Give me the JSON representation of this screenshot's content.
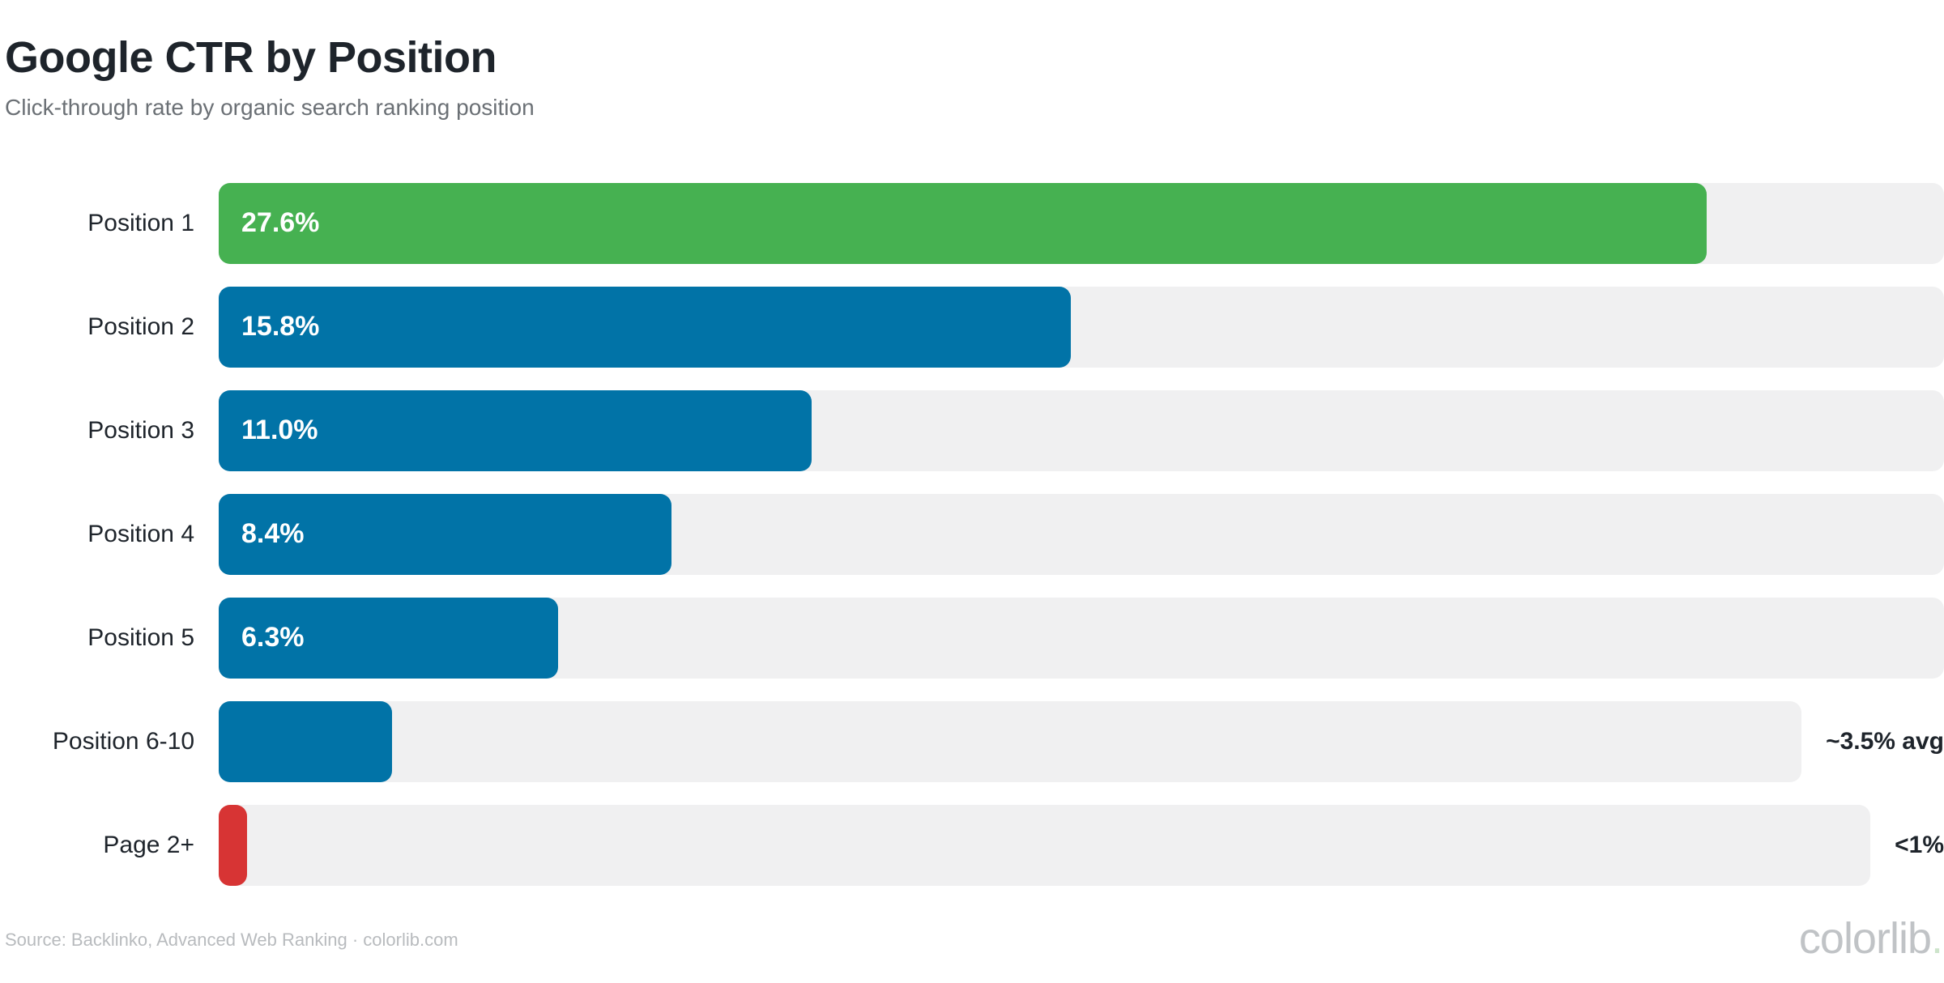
{
  "header": {
    "title": "Google CTR by Position",
    "subtitle": "Click-through rate by organic search ranking position"
  },
  "chart_data": {
    "type": "bar",
    "orientation": "horizontal",
    "title": "Google CTR by Position",
    "subtitle": "Click-through rate by organic search ranking position",
    "xlabel": "",
    "ylabel": "",
    "xlim": [
      0,
      32
    ],
    "grid": false,
    "legend": false,
    "categories": [
      "Position 1",
      "Position 2",
      "Position 3",
      "Position 4",
      "Position 5",
      "Position 6-10",
      "Page 2+"
    ],
    "values": [
      27.6,
      15.8,
      11.0,
      8.4,
      6.3,
      3.5,
      0.55
    ],
    "value_labels": [
      "27.6%",
      "15.8%",
      "11.0%",
      "8.4%",
      "6.3%",
      "",
      ""
    ],
    "outside_labels": [
      "",
      "",
      "",
      "",
      "",
      "~3.5% avg",
      "<1%"
    ],
    "bar_colors": [
      "#46b151",
      "#0173a7",
      "#0173a7",
      "#0173a7",
      "#0173a7",
      "#0173a7",
      "#d73434"
    ],
    "track_color": "#f0f0f1"
  },
  "footer": {
    "source": "Source: Backlinko, Advanced Web Ranking · colorlib.com",
    "logo_text": "colorlib",
    "logo_dot": "."
  }
}
